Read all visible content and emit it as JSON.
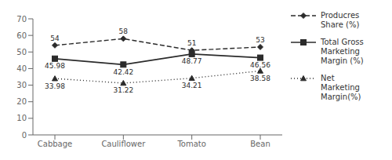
{
  "chart_data": {
    "type": "line",
    "categories": [
      "Cabbage",
      "Cauliflower",
      "Tomato",
      "Bean"
    ],
    "series": [
      {
        "name": "Producres\nShare (%)",
        "color": "#2b2b2b",
        "marker": "diamond",
        "line_style": "dashed",
        "values": [
          54,
          58,
          51,
          53
        ]
      },
      {
        "name": "Total Gross\nMarketing\nMargin (%)",
        "color": "#2b2b2b",
        "marker": "square",
        "line_style": "solid",
        "values": [
          45.98,
          42.42,
          48.77,
          46.56
        ]
      },
      {
        "name": "Net\nMarketing\nMargin(%)",
        "color": "#2b2b2b",
        "marker": "triangle",
        "line_style": "dotted",
        "values": [
          33.98,
          31.22,
          34.21,
          38.58
        ]
      }
    ],
    "ylim": [
      0,
      70
    ],
    "yticks": [
      0,
      10,
      20,
      30,
      40,
      50,
      60,
      70
    ],
    "data_labels": true,
    "legend": "right",
    "grid": false
  }
}
